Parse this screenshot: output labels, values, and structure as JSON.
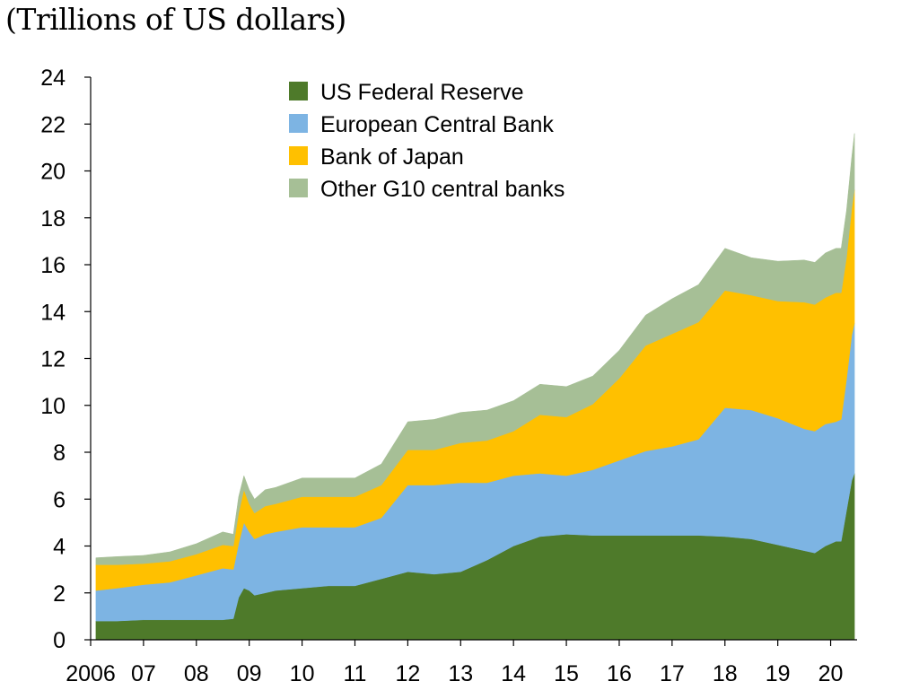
{
  "unit_label": "(Trillions of US dollars)",
  "chart_data": {
    "type": "area",
    "stacked": true,
    "title": "",
    "ylabel": "(Trillions of US dollars)",
    "xlabel": "",
    "ylim": [
      0,
      24
    ],
    "xlim": [
      2006.0,
      2020.5
    ],
    "yticks": [
      "0",
      "2",
      "4",
      "6",
      "8",
      "10",
      "12",
      "14",
      "16",
      "18",
      "20",
      "22",
      "24"
    ],
    "xticks": [
      {
        "value": 2006,
        "label": "2006"
      },
      {
        "value": 2007,
        "label": "07"
      },
      {
        "value": 2008,
        "label": "08"
      },
      {
        "value": 2009,
        "label": "09"
      },
      {
        "value": 2010,
        "label": "10"
      },
      {
        "value": 2011,
        "label": "11"
      },
      {
        "value": 2012,
        "label": "12"
      },
      {
        "value": 2013,
        "label": "13"
      },
      {
        "value": 2014,
        "label": "14"
      },
      {
        "value": 2015,
        "label": "15"
      },
      {
        "value": 2016,
        "label": "16"
      },
      {
        "value": 2017,
        "label": "17"
      },
      {
        "value": 2018,
        "label": "18"
      },
      {
        "value": 2019,
        "label": "19"
      },
      {
        "value": 2020,
        "label": "20"
      }
    ],
    "legend_position": "top-center",
    "x": [
      2006.1,
      2006.5,
      2007.0,
      2007.5,
      2008.0,
      2008.5,
      2008.7,
      2008.8,
      2008.9,
      2009.0,
      2009.1,
      2009.3,
      2009.5,
      2010.0,
      2010.5,
      2011.0,
      2011.5,
      2012.0,
      2012.5,
      2013.0,
      2013.5,
      2014.0,
      2014.5,
      2015.0,
      2015.5,
      2016.0,
      2016.5,
      2017.0,
      2017.5,
      2018.0,
      2018.5,
      2019.0,
      2019.5,
      2019.7,
      2019.9,
      2020.1,
      2020.2,
      2020.3,
      2020.4,
      2020.45
    ],
    "series": [
      {
        "name": "US Federal Reserve",
        "color": "#4e7a2a",
        "values": [
          0.8,
          0.8,
          0.85,
          0.85,
          0.85,
          0.85,
          0.9,
          1.8,
          2.2,
          2.1,
          1.9,
          2.0,
          2.1,
          2.2,
          2.3,
          2.3,
          2.6,
          2.9,
          2.8,
          2.9,
          3.4,
          4.0,
          4.4,
          4.5,
          4.45,
          4.45,
          4.45,
          4.45,
          4.45,
          4.4,
          4.3,
          4.05,
          3.8,
          3.7,
          4.0,
          4.2,
          4.2,
          5.5,
          6.8,
          7.1
        ]
      },
      {
        "name": "European Central Bank",
        "color": "#7db4e3",
        "values": [
          1.3,
          1.4,
          1.5,
          1.6,
          1.9,
          2.2,
          2.1,
          2.3,
          2.8,
          2.5,
          2.4,
          2.5,
          2.5,
          2.6,
          2.5,
          2.5,
          2.6,
          3.7,
          3.8,
          3.8,
          3.3,
          3.0,
          2.7,
          2.5,
          2.8,
          3.2,
          3.6,
          3.8,
          4.1,
          5.5,
          5.5,
          5.4,
          5.2,
          5.2,
          5.2,
          5.1,
          5.2,
          5.6,
          6.2,
          6.4
        ]
      },
      {
        "name": "Bank of Japan",
        "color": "#ffc000",
        "values": [
          1.1,
          1.0,
          0.9,
          0.9,
          0.9,
          1.0,
          1.0,
          1.3,
          1.4,
          1.2,
          1.1,
          1.2,
          1.2,
          1.3,
          1.3,
          1.3,
          1.4,
          1.5,
          1.5,
          1.7,
          1.8,
          1.9,
          2.5,
          2.5,
          2.8,
          3.5,
          4.5,
          4.8,
          5.0,
          5.0,
          4.9,
          5.0,
          5.4,
          5.4,
          5.4,
          5.5,
          5.4,
          5.2,
          5.4,
          5.7
        ]
      },
      {
        "name": "Other G10 central banks",
        "color": "#a6bf96",
        "values": [
          0.3,
          0.35,
          0.35,
          0.4,
          0.45,
          0.55,
          0.5,
          0.7,
          0.6,
          0.6,
          0.6,
          0.7,
          0.7,
          0.8,
          0.8,
          0.8,
          0.9,
          1.2,
          1.3,
          1.3,
          1.3,
          1.3,
          1.3,
          1.3,
          1.2,
          1.2,
          1.3,
          1.5,
          1.6,
          1.8,
          1.6,
          1.7,
          1.8,
          1.8,
          1.9,
          1.9,
          1.9,
          2.0,
          2.2,
          2.4
        ]
      }
    ]
  }
}
